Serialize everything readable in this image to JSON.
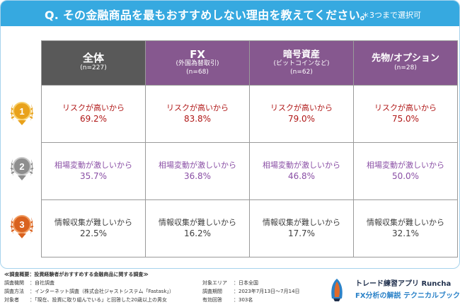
{
  "title": "Q. その金融商品を最もおすすめしない理由を教えてください。",
  "note": "＊3つまで選択可",
  "columns": [
    {
      "line1": "全体",
      "line2": "",
      "n": "(n=227)"
    },
    {
      "line1": "FX",
      "line2": "(外国為替取引)",
      "n": "(n=68)"
    },
    {
      "line1": "暗号資産",
      "line2": "(ビットコインなど)",
      "n": "(n=62)"
    },
    {
      "line1": "先物/オプション",
      "line2": "",
      "n": "(n=28)"
    }
  ],
  "ranks": [
    {
      "medal": "1",
      "cells": [
        {
          "label": "リスクが高いから",
          "value": "69.2%"
        },
        {
          "label": "リスクが高いから",
          "value": "83.8%"
        },
        {
          "label": "リスクが高いから",
          "value": "79.0%"
        },
        {
          "label": "リスクが高いから",
          "value": "75.0%"
        }
      ]
    },
    {
      "medal": "2",
      "cells": [
        {
          "label": "相場変動が激しいから",
          "value": "35.7%"
        },
        {
          "label": "相場変動が激しいから",
          "value": "36.8%"
        },
        {
          "label": "相場変動が激しいから",
          "value": "46.8%"
        },
        {
          "label": "相場変動が激しいから",
          "value": "50.0%"
        }
      ]
    },
    {
      "medal": "3",
      "cells": [
        {
          "label": "情報収集が難しいから",
          "value": "22.5%"
        },
        {
          "label": "情報収集が難しいから",
          "value": "16.2%"
        },
        {
          "label": "情報収集が難しいから",
          "value": "17.7%"
        },
        {
          "label": "情報収集が難しいから",
          "value": "32.1%"
        }
      ]
    }
  ],
  "footer": {
    "heading": "≪調査概要：投資経験者がおすすめする金融商品に関する調査≫",
    "rows_left": [
      {
        "key": "調査機関",
        "value": "：自社調査"
      },
      {
        "key": "調査方法",
        "value": "：インターネット調査（株式会社ジャストシステム「Fastask」）"
      },
      {
        "key": "対象者",
        "value": "：「現在、投資に取り組んでいる」と回答した20歳以上の男女"
      }
    ],
    "rows_right": [
      {
        "key": "対象エリア",
        "value": "：日本全国"
      },
      {
        "key": "調査期間",
        "value": "：2023年7月13日〜7月14日"
      },
      {
        "key": "有効回答",
        "value": "：303名"
      }
    ]
  },
  "brand": {
    "line1": "トレード練習アプリ Runcha",
    "line2": "FX分析の解説 テクニカルブック"
  },
  "colors": {
    "banner": "#36a9e0",
    "header_all": "#595959",
    "header_product": "#86588f",
    "rank1_text": "#b01818",
    "rank2_text": "#8a4fa5",
    "rank3_text": "#404040",
    "gold": "#e9a21b",
    "silver": "#8e8e8e",
    "bronze": "#d9621f"
  }
}
